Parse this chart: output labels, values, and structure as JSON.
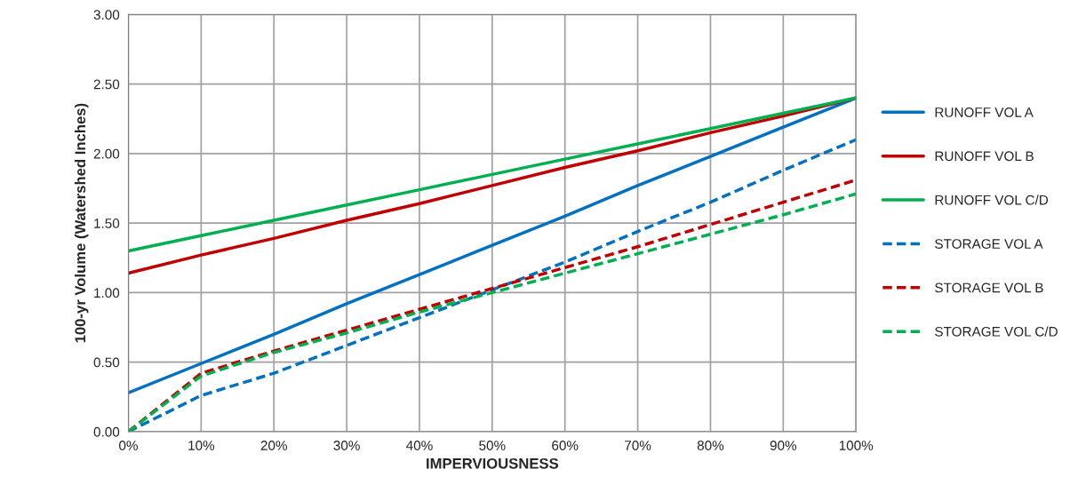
{
  "chart_data": {
    "type": "line",
    "xlabel": "IMPERVIOUSNESS",
    "ylabel": "100-yr Volume (Watershed Inches)",
    "x": [
      0,
      10,
      20,
      30,
      40,
      50,
      60,
      70,
      80,
      90,
      100
    ],
    "series": [
      {
        "name": "RUNOFF VOL A",
        "color": "#0070c0",
        "line_style": "solid",
        "values": [
          0.28,
          0.49,
          0.7,
          0.92,
          1.13,
          1.34,
          1.55,
          1.77,
          1.98,
          2.19,
          2.4
        ]
      },
      {
        "name": "RUNOFF VOL B",
        "color": "#c00000",
        "line_style": "solid",
        "values": [
          1.14,
          1.27,
          1.39,
          1.52,
          1.64,
          1.77,
          1.9,
          2.02,
          2.15,
          2.27,
          2.4
        ]
      },
      {
        "name": "RUNOFF VOL C/D",
        "color": "#00b050",
        "line_style": "solid",
        "values": [
          1.3,
          1.41,
          1.52,
          1.63,
          1.74,
          1.85,
          1.96,
          2.07,
          2.18,
          2.29,
          2.4
        ]
      },
      {
        "name": "STORAGE VOL A",
        "color": "#0070c0",
        "line_style": "dashed",
        "values": [
          0.0,
          0.26,
          0.42,
          0.62,
          0.82,
          1.02,
          1.22,
          1.44,
          1.65,
          1.88,
          2.1
        ]
      },
      {
        "name": "STORAGE VOL B",
        "color": "#c00000",
        "line_style": "dashed",
        "values": [
          0.0,
          0.42,
          0.58,
          0.73,
          0.88,
          1.03,
          1.18,
          1.33,
          1.49,
          1.65,
          1.81
        ]
      },
      {
        "name": "STORAGE VOL C/D",
        "color": "#00b050",
        "line_style": "dashed",
        "values": [
          0.0,
          0.4,
          0.57,
          0.71,
          0.86,
          1.0,
          1.14,
          1.28,
          1.42,
          1.56,
          1.71
        ]
      }
    ],
    "xlim": [
      0,
      100
    ],
    "xticks": [
      {
        "value": 0,
        "label": "0%"
      },
      {
        "value": 10,
        "label": "10%"
      },
      {
        "value": 20,
        "label": "20%"
      },
      {
        "value": 30,
        "label": "30%"
      },
      {
        "value": 40,
        "label": "40%"
      },
      {
        "value": 50,
        "label": "50%"
      },
      {
        "value": 60,
        "label": "60%"
      },
      {
        "value": 70,
        "label": "70%"
      },
      {
        "value": 80,
        "label": "80%"
      },
      {
        "value": 90,
        "label": "90%"
      },
      {
        "value": 100,
        "label": "100%"
      }
    ],
    "ylim": [
      0,
      3
    ],
    "yticks": [
      {
        "value": 0,
        "label": "0.00"
      },
      {
        "value": 0.5,
        "label": "0.50"
      },
      {
        "value": 1,
        "label": "1.00"
      },
      {
        "value": 1.5,
        "label": "1.50"
      },
      {
        "value": 2,
        "label": "2.00"
      },
      {
        "value": 2.5,
        "label": "2.50"
      },
      {
        "value": 3,
        "label": "3.00"
      }
    ],
    "grid": true,
    "legend": "right",
    "marker": "none"
  }
}
